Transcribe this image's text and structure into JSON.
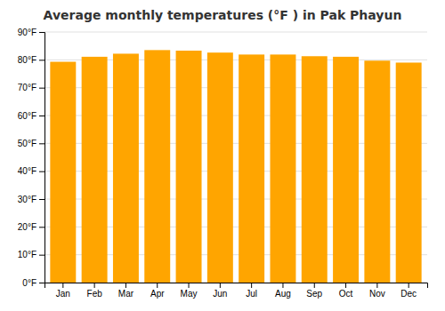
{
  "chart_data": {
    "type": "bar",
    "title": "Average monthly temperatures (°F ) in Pak Phayun",
    "categories": [
      "Jan",
      "Feb",
      "Mar",
      "Apr",
      "May",
      "Jun",
      "Jul",
      "Aug",
      "Sep",
      "Oct",
      "Nov",
      "Dec"
    ],
    "values": [
      79.3,
      81.1,
      82.2,
      83.5,
      83.3,
      82.6,
      81.9,
      81.9,
      81.3,
      81.1,
      79.7,
      79.0
    ],
    "color": "#FFA500",
    "ylim": [
      0,
      90
    ],
    "yticks": [
      {
        "value": 0,
        "label": "0°F"
      },
      {
        "value": 10,
        "label": "10°F"
      },
      {
        "value": 20,
        "label": "20°F"
      },
      {
        "value": 30,
        "label": "30°F"
      },
      {
        "value": 40,
        "label": "40°F"
      },
      {
        "value": 50,
        "label": "50°F"
      },
      {
        "value": 60,
        "label": "60°F"
      },
      {
        "value": 70,
        "label": "70°F"
      },
      {
        "value": 80,
        "label": "80°F"
      },
      {
        "value": 90,
        "label": "90°F"
      }
    ],
    "grid": true
  }
}
